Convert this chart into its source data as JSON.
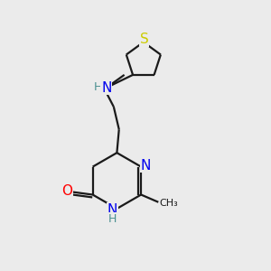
{
  "background_color": "#ebebeb",
  "bond_color": "#1a1a1a",
  "atom_colors": {
    "N": "#0000ee",
    "O": "#ff0000",
    "S": "#cccc00",
    "H": "#4a9090",
    "C": "#1a1a1a"
  },
  "lw": 1.6,
  "fs": 10
}
